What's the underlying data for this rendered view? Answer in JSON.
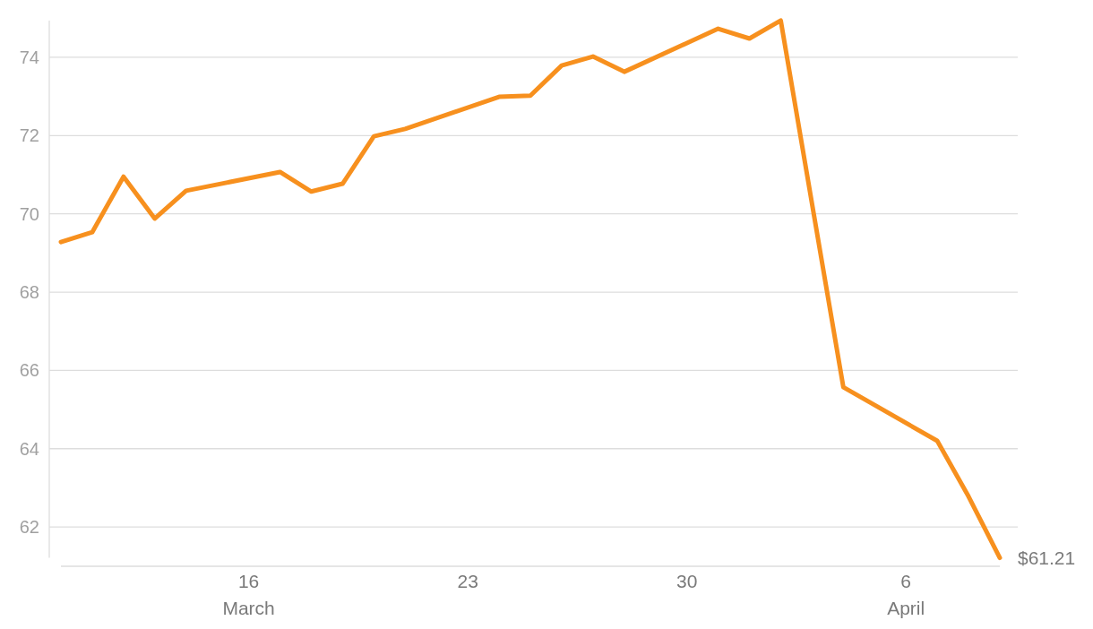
{
  "chart_data": {
    "type": "line",
    "x": [
      "--03-10",
      "--03-11",
      "--03-12",
      "--03-13",
      "--03-14",
      "--03-17",
      "--03-18",
      "--03-19",
      "--03-20",
      "--03-21",
      "--03-24",
      "--03-25",
      "--03-26",
      "--03-27",
      "--03-28",
      "--03-31",
      "--04-01",
      "--04-02",
      "--04-04",
      "--04-07",
      "--04-08",
      "--04-09"
    ],
    "series": [
      {
        "color": "#f7901e",
        "values": [
          69.28,
          69.53,
          70.95,
          69.88,
          70.59,
          71.07,
          70.57,
          70.77,
          71.98,
          72.17,
          72.99,
          73.02,
          73.79,
          74.02,
          73.63,
          74.73,
          74.48,
          74.94,
          65.57,
          64.2,
          62.78,
          61.21
        ]
      }
    ],
    "xticks": [
      {
        "value": "--03-16",
        "label": "16\nMarch"
      },
      {
        "value": "--03-23",
        "label": "23"
      },
      {
        "value": "--03-30",
        "label": "30"
      },
      {
        "value": "--04-06",
        "label": "6\nApril"
      }
    ],
    "ylim": [
      61.21,
      74.94
    ],
    "xlim": [
      "--03-10",
      "--04-09"
    ],
    "yticks": [
      62,
      64,
      66,
      68,
      70,
      72,
      74
    ],
    "grid": "y",
    "marker": "none",
    "line_style": "solid",
    "annotations": [
      {
        "text": "$61.21",
        "x": "--04-09",
        "y": 61.21
      }
    ]
  }
}
